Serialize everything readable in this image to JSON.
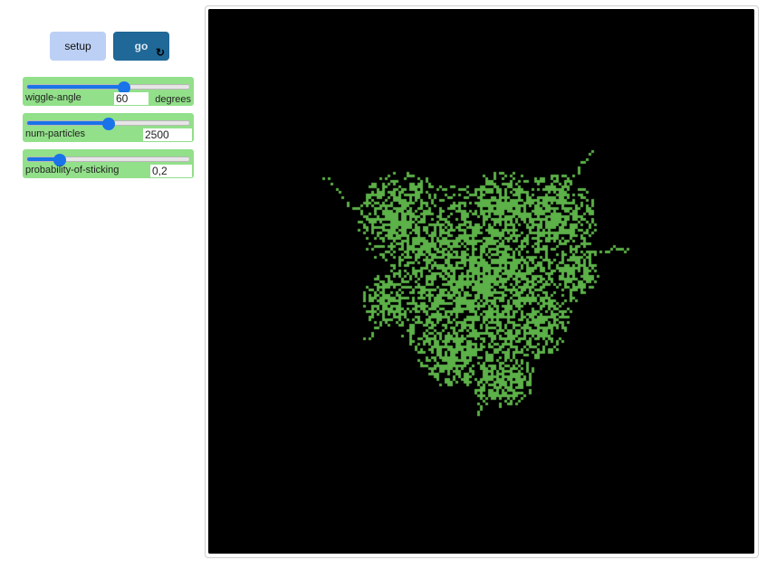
{
  "buttons": {
    "setup_label": "setup",
    "go_label": "go",
    "go_forever_icon": "forever-loop-icon"
  },
  "sliders": [
    {
      "label": "wiggle-angle",
      "value": "60",
      "units": "degrees",
      "fraction": 0.6
    },
    {
      "label": "num-particles",
      "value": "2500",
      "units": "",
      "fraction": 0.5
    },
    {
      "label": "probability-of-sticking",
      "value": "0,2",
      "units": "",
      "fraction": 0.2
    }
  ],
  "world": {
    "background": "#000000",
    "patch_color": "#5cb148"
  }
}
